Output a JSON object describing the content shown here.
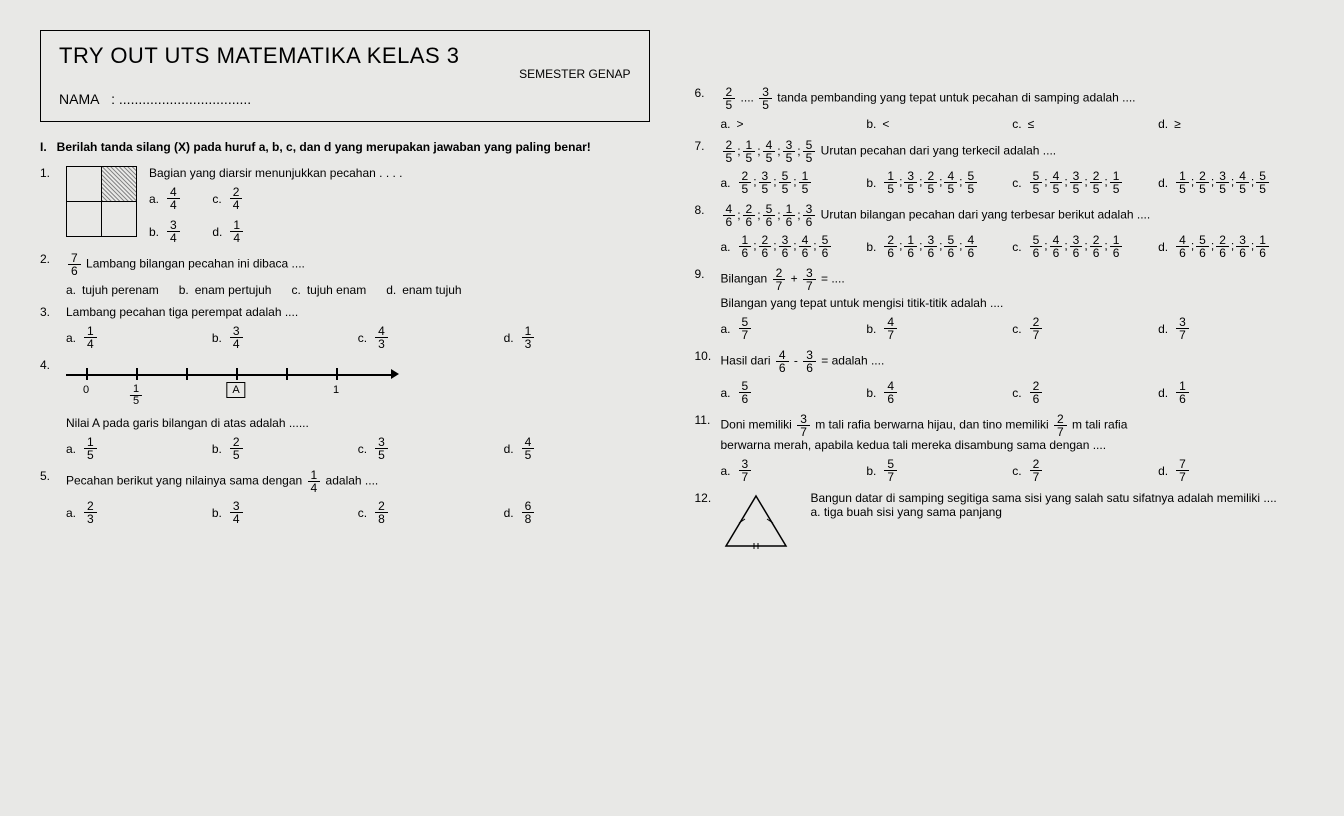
{
  "header": {
    "title": "TRY OUT UTS MATEMATIKA KELAS 3",
    "semester": "SEMESTER GENAP",
    "nama_label": "NAMA",
    "nama_dots": ": .................................."
  },
  "section": {
    "num": "I.",
    "text": "Berilah tanda silang (X) pada huruf a, b, c, dan d yang merupakan jawaban yang paling benar!"
  },
  "q1": {
    "num": "1.",
    "text": "Bagian yang diarsir menunjukkan pecahan . . . .",
    "a": {
      "n": "4",
      "d": "4"
    },
    "b": {
      "n": "3",
      "d": "4"
    },
    "c": {
      "n": "2",
      "d": "4"
    },
    "d": {
      "n": "1",
      "d": "4"
    }
  },
  "q2": {
    "num": "2.",
    "frac": {
      "n": "7",
      "d": "6"
    },
    "text": "Lambang bilangan pecahan ini dibaca ....",
    "a": "tujuh perenam",
    "b": "enam pertujuh",
    "c": "tujuh enam",
    "d": "enam tujuh"
  },
  "q3": {
    "num": "3.",
    "text": "Lambang pecahan tiga perempat adalah ....",
    "a": {
      "n": "1",
      "d": "4"
    },
    "b": {
      "n": "3",
      "d": "4"
    },
    "c": {
      "n": "4",
      "d": "3"
    },
    "d": {
      "n": "1",
      "d": "3"
    }
  },
  "q4": {
    "num": "4.",
    "text": "Nilai A pada garis bilangan di atas adalah ......",
    "tick0": "0",
    "tick1": {
      "n": "1",
      "d": "5"
    },
    "tickA": "A",
    "tick5": "1",
    "a": {
      "n": "1",
      "d": "5"
    },
    "b": {
      "n": "2",
      "d": "5"
    },
    "c": {
      "n": "3",
      "d": "5"
    },
    "d": {
      "n": "4",
      "d": "5"
    }
  },
  "q5": {
    "num": "5.",
    "text1": "Pecahan berikut yang nilainya sama dengan",
    "frac": {
      "n": "1",
      "d": "4"
    },
    "text2": "adalah ....",
    "a": {
      "n": "2",
      "d": "3"
    },
    "b": {
      "n": "3",
      "d": "4"
    },
    "c": {
      "n": "2",
      "d": "8"
    },
    "d": {
      "n": "6",
      "d": "8"
    }
  },
  "q6": {
    "num": "6.",
    "f1": {
      "n": "2",
      "d": "5"
    },
    "dots": "....",
    "f2": {
      "n": "3",
      "d": "5"
    },
    "text": "tanda pembanding yang tepat untuk pecahan di samping adalah ....",
    "a": ">",
    "b": "<",
    "c": "≤",
    "d": "≥"
  },
  "q7": {
    "num": "7.",
    "seq": [
      [
        "2",
        "5"
      ],
      [
        "1",
        "5"
      ],
      [
        "4",
        "5"
      ],
      [
        "3",
        "5"
      ],
      [
        "5",
        "5"
      ]
    ],
    "text": "Urutan pecahan dari yang terkecil adalah ....",
    "a": [
      [
        "2",
        "5"
      ],
      [
        "3",
        "5"
      ],
      [
        "5",
        "5"
      ],
      [
        "1",
        "5"
      ]
    ],
    "b": [
      [
        "1",
        "5"
      ],
      [
        "3",
        "5"
      ],
      [
        "2",
        "5"
      ],
      [
        "4",
        "5"
      ],
      [
        "5",
        "5"
      ]
    ],
    "c": [
      [
        "5",
        "5"
      ],
      [
        "4",
        "5"
      ],
      [
        "3",
        "5"
      ],
      [
        "2",
        "5"
      ],
      [
        "1",
        "5"
      ]
    ],
    "d": [
      [
        "1",
        "5"
      ],
      [
        "2",
        "5"
      ],
      [
        "3",
        "5"
      ],
      [
        "4",
        "5"
      ],
      [
        "5",
        "5"
      ]
    ]
  },
  "q8": {
    "num": "8.",
    "seq": [
      [
        "4",
        "6"
      ],
      [
        "2",
        "6"
      ],
      [
        "5",
        "6"
      ],
      [
        "1",
        "6"
      ],
      [
        "3",
        "6"
      ]
    ],
    "text": "Urutan bilangan pecahan dari yang terbesar berikut adalah ....",
    "a": [
      [
        "1",
        "6"
      ],
      [
        "2",
        "6"
      ],
      [
        "3",
        "6"
      ],
      [
        "4",
        "6"
      ],
      [
        "5",
        "6"
      ]
    ],
    "b": [
      [
        "2",
        "6"
      ],
      [
        "1",
        "6"
      ],
      [
        "3",
        "6"
      ],
      [
        "5",
        "6"
      ],
      [
        "4",
        "6"
      ]
    ],
    "c": [
      [
        "5",
        "6"
      ],
      [
        "4",
        "6"
      ],
      [
        "3",
        "6"
      ],
      [
        "2",
        "6"
      ],
      [
        "1",
        "6"
      ]
    ],
    "d": [
      [
        "4",
        "6"
      ],
      [
        "5",
        "6"
      ],
      [
        "2",
        "6"
      ],
      [
        "3",
        "6"
      ],
      [
        "1",
        "6"
      ]
    ]
  },
  "q9": {
    "num": "9.",
    "text1": "Bilangan",
    "f1": {
      "n": "2",
      "d": "7"
    },
    "plus": "+",
    "f2": {
      "n": "3",
      "d": "7"
    },
    "eq": "= ....",
    "text2": "Bilangan yang tepat untuk mengisi titik-titik adalah ....",
    "a": {
      "n": "5",
      "d": "7"
    },
    "b": {
      "n": "4",
      "d": "7"
    },
    "c": {
      "n": "2",
      "d": "7"
    },
    "d": {
      "n": "3",
      "d": "7"
    }
  },
  "q10": {
    "num": "10.",
    "text1": "Hasil dari",
    "f1": {
      "n": "4",
      "d": "6"
    },
    "minus": "-",
    "f2": {
      "n": "3",
      "d": "6"
    },
    "eq": "= adalah ....",
    "a": {
      "n": "5",
      "d": "6"
    },
    "b": {
      "n": "4",
      "d": "6"
    },
    "c": {
      "n": "2",
      "d": "6"
    },
    "d": {
      "n": "1",
      "d": "6"
    }
  },
  "q11": {
    "num": "11.",
    "t1": "Doni memiliki",
    "f1": {
      "n": "3",
      "d": "7"
    },
    "t2": "m tali rafia berwarna hijau, dan tino memiliki",
    "f2": {
      "n": "2",
      "d": "7"
    },
    "t3": "m tali rafia",
    "t4": "berwarna merah, apabila kedua tali mereka disambung sama dengan ....",
    "a": {
      "n": "3",
      "d": "7"
    },
    "b": {
      "n": "5",
      "d": "7"
    },
    "c": {
      "n": "2",
      "d": "7"
    },
    "d": {
      "n": "7",
      "d": "7"
    }
  },
  "q12": {
    "num": "12.",
    "t1": "Bangun datar di samping segitiga sama sisi yang salah satu sifatnya adalah memiliki ....",
    "a": "a. tiga buah sisi yang sama panjang"
  },
  "labels": {
    "a": "a.",
    "b": "b.",
    "c": "c.",
    "d": "d."
  }
}
